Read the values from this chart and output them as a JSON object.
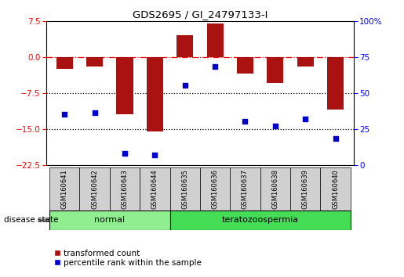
{
  "title": "GDS2695 / GI_24797133-I",
  "samples": [
    "GSM160641",
    "GSM160642",
    "GSM160643",
    "GSM160644",
    "GSM160635",
    "GSM160636",
    "GSM160637",
    "GSM160638",
    "GSM160639",
    "GSM160640"
  ],
  "transformed_count": [
    -2.5,
    -2.0,
    -12.0,
    -15.5,
    4.5,
    7.0,
    -3.5,
    -5.5,
    -2.0,
    -11.0
  ],
  "percentile_rank": [
    35,
    36,
    8,
    7,
    55,
    68,
    30,
    27,
    32,
    18
  ],
  "ylim_left": [
    -22.5,
    7.5
  ],
  "ylim_right": [
    0,
    100
  ],
  "yticks_left": [
    7.5,
    0,
    -7.5,
    -15,
    -22.5
  ],
  "yticks_right": [
    100,
    75,
    50,
    25,
    0
  ],
  "groups": [
    {
      "label": "normal",
      "span": [
        0,
        3
      ],
      "color": "#90EE90"
    },
    {
      "label": "teratozoospermia",
      "span": [
        4,
        9
      ],
      "color": "#44DD55"
    }
  ],
  "bar_color": "#AA1111",
  "scatter_color": "#0000CC",
  "hline_y": 0,
  "dotted_lines": [
    -7.5,
    -15
  ],
  "disease_state_label": "disease state",
  "legend_items": [
    {
      "label": "transformed count",
      "color": "#AA1111"
    },
    {
      "label": "percentile rank within the sample",
      "color": "#0000CC"
    }
  ],
  "sample_box_color": "#D0D0D0",
  "bar_width": 0.55
}
